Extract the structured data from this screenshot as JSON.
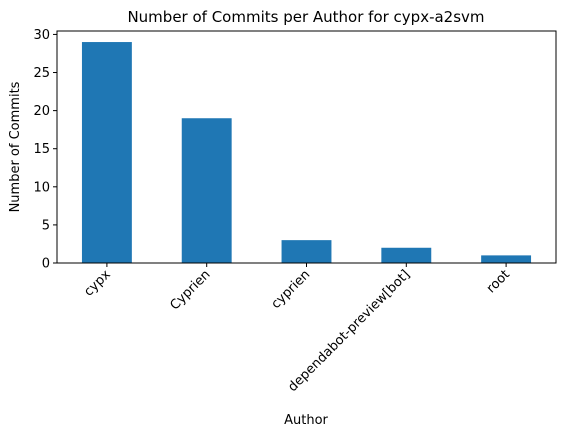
{
  "chart_data": {
    "type": "bar",
    "title": "Number of Commits per Author for cypx-a2svm",
    "xlabel": "Author",
    "ylabel": "Number of Commits",
    "categories": [
      "cypx",
      "Cyprien",
      "cyprien",
      "dependabot-preview[bot]",
      "root"
    ],
    "values": [
      29,
      19,
      3,
      2,
      1
    ],
    "ylim": [
      0,
      30.45
    ],
    "yticks": [
      0,
      5,
      10,
      15,
      20,
      25,
      30
    ],
    "grid": false,
    "legend": "none",
    "bar_color": "#1f77b4"
  }
}
